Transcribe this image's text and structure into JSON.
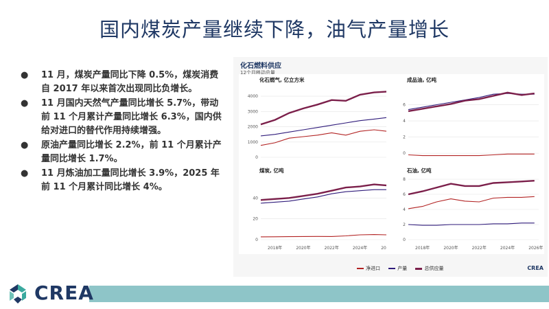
{
  "slide": {
    "title": "国内煤炭产量继续下降，油气产量增长",
    "bullets": [
      "11 月，煤炭产量同比下降 0.5%，煤炭消费自 2017 年以来首次出现同比负增长。",
      "11 月国内天然气产量同比增长 5.7%，带动前 11 个月累计产量同比增长 6.3%，国内供给对进口的替代作用持续增强。",
      "原油产量同比增长 2.2%，前 11 个月累计产量同比增长 1.7%。",
      "11 月炼油加工量同比增长 3.9%，2025 年前 11 个月累计同比增长 4%。"
    ],
    "logo": "CREA"
  },
  "figure": {
    "title": "化石燃料供应",
    "subtitle": "12个月移动总量",
    "logo": "CREA",
    "legend": [
      "净进口",
      "产量",
      "总供应量"
    ],
    "colors": {
      "净进口": "#b22222",
      "产量": "#2e1a7a",
      "总供应量": "#7b1f4a"
    }
  },
  "chart_data": [
    {
      "type": "line",
      "title": "化石燃气, 亿立方米",
      "x": [
        2017,
        2018,
        2019,
        2020,
        2021,
        2022,
        2023,
        2024,
        2025,
        2025.9
      ],
      "ylim": [
        0,
        4500
      ],
      "yticks": [
        0,
        1000,
        2000,
        3000,
        4000
      ],
      "series": [
        {
          "name": "净进口",
          "values": [
            780,
            950,
            1250,
            1350,
            1450,
            1600,
            1450,
            1700,
            1800,
            1700
          ]
        },
        {
          "name": "产量",
          "values": [
            1400,
            1500,
            1650,
            1800,
            1950,
            2100,
            2250,
            2400,
            2500,
            2600
          ]
        },
        {
          "name": "总供应量",
          "values": [
            2150,
            2450,
            2900,
            3200,
            3450,
            3750,
            3700,
            4100,
            4250,
            4300
          ]
        }
      ]
    },
    {
      "type": "line",
      "title": "成品油, 亿吨",
      "x": [
        2017,
        2018,
        2019,
        2020,
        2021,
        2022,
        2023,
        2024,
        2025,
        2025.9
      ],
      "ylim": [
        -0.5,
        8
      ],
      "yticks": [
        0,
        2,
        4,
        6
      ],
      "series": [
        {
          "name": "净进口",
          "values": [
            -0.2,
            -0.3,
            -0.3,
            -0.3,
            -0.3,
            -0.3,
            -0.2,
            -0.1,
            -0.1,
            -0.1
          ]
        },
        {
          "name": "产量",
          "values": [
            5.4,
            5.7,
            6.0,
            6.3,
            6.6,
            6.9,
            7.3,
            7.4,
            7.3,
            7.3
          ]
        },
        {
          "name": "总供应量",
          "values": [
            5.2,
            5.5,
            5.8,
            6.1,
            6.5,
            6.7,
            7.1,
            7.5,
            7.2,
            7.4
          ]
        }
      ]
    },
    {
      "type": "line",
      "title": "煤炭, 亿吨",
      "x": [
        2017,
        2018,
        2019,
        2020,
        2021,
        2022,
        2023,
        2024,
        2025,
        2025.9
      ],
      "ylim": [
        0,
        58
      ],
      "yticks": [
        0,
        20,
        40
      ],
      "series": [
        {
          "name": "净进口",
          "values": [
            2.7,
            2.8,
            2.9,
            3.0,
            3.1,
            3.0,
            3.6,
            4.6,
            4.9,
            4.6
          ]
        },
        {
          "name": "产量",
          "values": [
            35,
            36,
            37,
            39,
            41,
            44,
            46,
            47,
            48,
            48
          ]
        },
        {
          "name": "总供应量",
          "values": [
            38,
            39,
            40,
            42,
            44,
            47,
            50,
            51,
            53,
            52
          ]
        }
      ]
    },
    {
      "type": "line",
      "title": "石油, 亿吨",
      "x": [
        2017,
        2018,
        2019,
        2020,
        2021,
        2022,
        2023,
        2024,
        2025,
        2025.9
      ],
      "ylim": [
        0,
        8
      ],
      "yticks": [
        0,
        2,
        4,
        6,
        8
      ],
      "series": [
        {
          "name": "净进口",
          "values": [
            4.1,
            4.4,
            5.0,
            5.4,
            5.1,
            5.0,
            5.5,
            5.6,
            5.6,
            5.7
          ]
        },
        {
          "name": "产量",
          "values": [
            2.0,
            1.9,
            1.9,
            2.0,
            2.0,
            2.0,
            2.1,
            2.1,
            2.2,
            2.2
          ]
        },
        {
          "name": "总供应量",
          "values": [
            6.0,
            6.4,
            6.9,
            7.4,
            7.1,
            7.1,
            7.5,
            7.6,
            7.7,
            7.8
          ]
        }
      ]
    }
  ],
  "xticks": [
    "2018年",
    "2020年",
    "2022年",
    "2024年",
    "2026年"
  ]
}
